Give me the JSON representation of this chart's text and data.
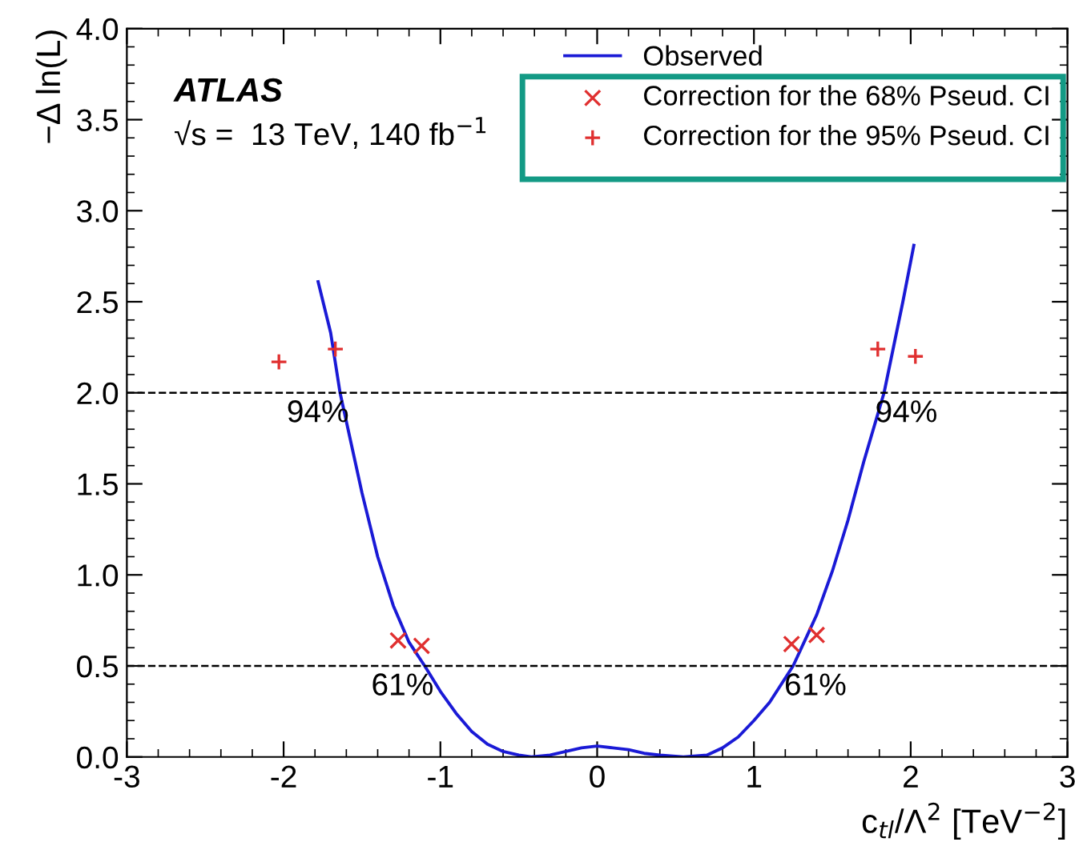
{
  "chart_data": {
    "type": "line",
    "xlabel": "c$_{tl}$/Λ$^{2}$ [TeV$^{−2}$]",
    "ylabel": "−Δ ln(L)",
    "annotations": [
      "ATLAS",
      "√s =  13 TeV, 140 fb$^{−1}$",
      {
        "text": "94%",
        "x": -1.64,
        "y": 2.0
      },
      {
        "text": "94%",
        "x": 1.83,
        "y": 2.0
      },
      {
        "text": "61%",
        "x": -1.1,
        "y": 0.5
      },
      {
        "text": "61%",
        "x": 1.25,
        "y": 0.5
      }
    ],
    "series": [
      {
        "name": "Observed",
        "color": "#1a1ad6",
        "marker": "none",
        "line_style": "solid",
        "x": [
          -1.78,
          -1.7,
          -1.64,
          -1.5,
          -1.4,
          -1.3,
          -1.2,
          -1.1,
          -1.0,
          -0.9,
          -0.8,
          -0.7,
          -0.6,
          -0.5,
          -0.42,
          -0.3,
          -0.2,
          -0.1,
          0,
          0.1,
          0.2,
          0.3,
          0.4,
          0.55,
          0.7,
          0.8,
          0.9,
          1.0,
          1.1,
          1.25,
          1.4,
          1.5,
          1.6,
          1.7,
          1.83,
          1.95,
          2.02
        ],
        "values": [
          2.61,
          2.33,
          2.0,
          1.45,
          1.1,
          0.83,
          0.63,
          0.5,
          0.36,
          0.24,
          0.14,
          0.07,
          0.03,
          0.01,
          0.0,
          0.01,
          0.03,
          0.05,
          0.06,
          0.05,
          0.04,
          0.02,
          0.01,
          0.0,
          0.01,
          0.05,
          0.11,
          0.2,
          0.3,
          0.5,
          0.78,
          1.02,
          1.3,
          1.62,
          2.0,
          2.5,
          2.81
        ]
      },
      {
        "name": "Correction for the 68% Pseud. CI",
        "type": "scatter",
        "color": "#e03030",
        "marker": "cross",
        "x": [
          -1.27,
          -1.12,
          1.24,
          1.4
        ],
        "values": [
          0.64,
          0.61,
          0.62,
          0.67
        ]
      },
      {
        "name": "Correction for the 95% Pseud. CI",
        "type": "scatter",
        "color": "#e03030",
        "marker": "plus",
        "x": [
          -2.03,
          -1.67,
          1.79,
          2.03
        ],
        "values": [
          2.17,
          2.24,
          2.24,
          2.2
        ]
      }
    ],
    "ref_lines": [
      {
        "axis": "y",
        "value": 2.0,
        "label": null,
        "color": "#000000",
        "line_style": "dashed"
      },
      {
        "axis": "y",
        "value": 0.5,
        "label": null,
        "color": "#000000",
        "line_style": "dashed"
      }
    ],
    "xlim": [
      -3,
      3
    ],
    "ylim": [
      0,
      4
    ],
    "xticks": [
      -3,
      -2,
      -1,
      0,
      1,
      2,
      3
    ],
    "yticks": [
      {
        "value": 0,
        "label": "0.0"
      },
      0.5,
      {
        "value": 1,
        "label": "1.0"
      },
      1.5,
      {
        "value": 2,
        "label": "2.0"
      },
      2.5,
      {
        "value": 3,
        "label": "3.0"
      },
      3.5,
      {
        "value": 4,
        "label": "4.0"
      }
    ],
    "grid": false,
    "legend": "top right"
  }
}
